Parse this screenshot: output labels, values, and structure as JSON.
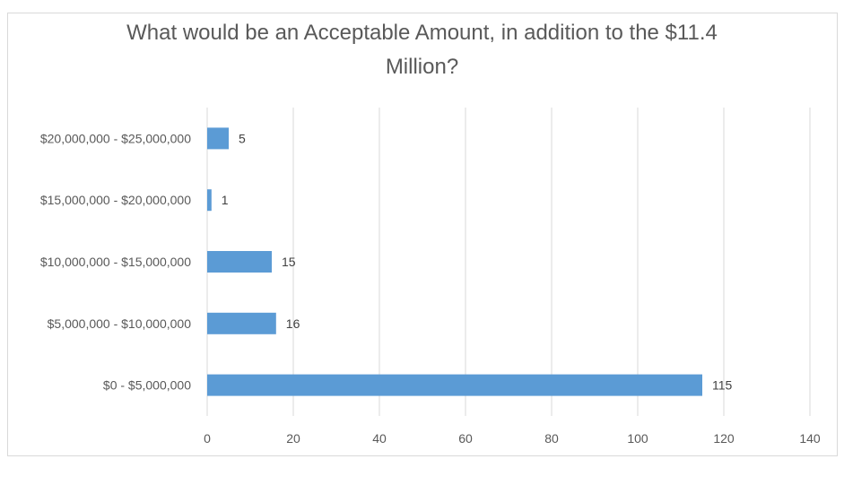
{
  "chart_data": {
    "type": "bar",
    "orientation": "horizontal",
    "title_lines": [
      "What would be an Acceptable Amount, in addition to the $11.4",
      "Million?"
    ],
    "categories": [
      "$0 - $5,000,000",
      "$5,000,000 - $10,000,000",
      "$10,000,000 - $15,000,000",
      "$15,000,000 - $20,000,000",
      "$20,000,000 - $25,000,000"
    ],
    "values": [
      115,
      16,
      15,
      1,
      5
    ],
    "data_labels": [
      "115",
      "16",
      "15",
      "1",
      "5"
    ],
    "xlim": [
      0,
      140
    ],
    "x_ticks": [
      0,
      20,
      40,
      60,
      80,
      100,
      120,
      140
    ],
    "x_tick_labels": [
      "0",
      "20",
      "40",
      "60",
      "80",
      "100",
      "120",
      "140"
    ],
    "grid": true,
    "legend": "none",
    "bar_color": "#5b9bd5",
    "grid_color": "#d9d9d9",
    "text_color": "#595959"
  }
}
